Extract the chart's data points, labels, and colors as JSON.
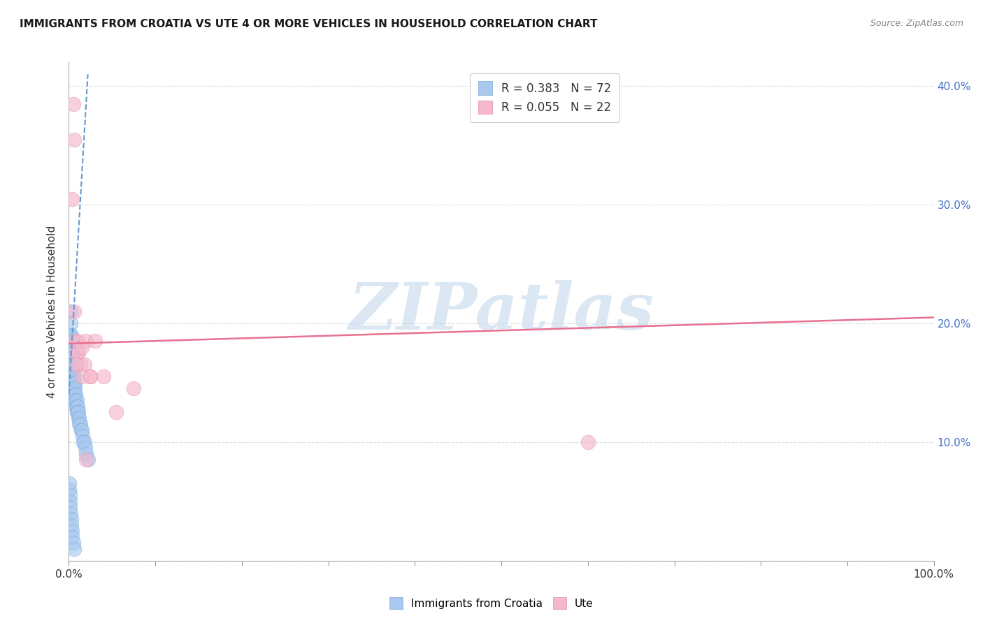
{
  "title": "IMMIGRANTS FROM CROATIA VS UTE 4 OR MORE VEHICLES IN HOUSEHOLD CORRELATION CHART",
  "source": "Source: ZipAtlas.com",
  "ylabel": "4 or more Vehicles in Household",
  "xlim": [
    0.0,
    1.0
  ],
  "ylim": [
    0.0,
    0.42
  ],
  "x_ticks": [
    0.0,
    0.1,
    0.2,
    0.3,
    0.4,
    0.5,
    0.6,
    0.7,
    0.8,
    0.9,
    1.0
  ],
  "x_tick_labels_bottom": [
    "0.0%",
    "",
    "",
    "",
    "",
    "",
    "",
    "",
    "",
    "",
    "100.0%"
  ],
  "y_ticks": [
    0.0,
    0.1,
    0.2,
    0.3,
    0.4
  ],
  "y_tick_labels_right": [
    "",
    "10.0%",
    "20.0%",
    "30.0%",
    "40.0%"
  ],
  "legend_entries": [
    {
      "label": "R = 0.383   N = 72",
      "color": "#A8C8F0"
    },
    {
      "label": "R = 0.055   N = 22",
      "color": "#F5B8CC"
    }
  ],
  "blue_scatter_x": [
    0.0008,
    0.001,
    0.0012,
    0.0015,
    0.0015,
    0.0018,
    0.002,
    0.002,
    0.002,
    0.0022,
    0.0025,
    0.003,
    0.003,
    0.003,
    0.003,
    0.003,
    0.0032,
    0.0035,
    0.004,
    0.004,
    0.004,
    0.004,
    0.0042,
    0.0045,
    0.005,
    0.005,
    0.005,
    0.005,
    0.005,
    0.005,
    0.006,
    0.006,
    0.006,
    0.006,
    0.006,
    0.007,
    0.007,
    0.007,
    0.007,
    0.008,
    0.008,
    0.008,
    0.009,
    0.009,
    0.009,
    0.01,
    0.01,
    0.011,
    0.011,
    0.012,
    0.012,
    0.013,
    0.014,
    0.015,
    0.016,
    0.017,
    0.018,
    0.019,
    0.02,
    0.022,
    0.0005,
    0.0008,
    0.001,
    0.0012,
    0.0015,
    0.002,
    0.0025,
    0.003,
    0.0035,
    0.004,
    0.005,
    0.006
  ],
  "blue_scatter_y": [
    0.19,
    0.185,
    0.17,
    0.165,
    0.16,
    0.175,
    0.21,
    0.2,
    0.19,
    0.185,
    0.175,
    0.19,
    0.185,
    0.18,
    0.175,
    0.17,
    0.18,
    0.17,
    0.175,
    0.17,
    0.165,
    0.16,
    0.175,
    0.165,
    0.165,
    0.16,
    0.155,
    0.15,
    0.145,
    0.14,
    0.155,
    0.15,
    0.145,
    0.14,
    0.135,
    0.15,
    0.145,
    0.14,
    0.135,
    0.14,
    0.135,
    0.13,
    0.135,
    0.13,
    0.125,
    0.13,
    0.125,
    0.125,
    0.12,
    0.12,
    0.115,
    0.115,
    0.11,
    0.11,
    0.105,
    0.1,
    0.1,
    0.095,
    0.09,
    0.085,
    0.065,
    0.06,
    0.055,
    0.05,
    0.045,
    0.04,
    0.035,
    0.03,
    0.025,
    0.02,
    0.015,
    0.01
  ],
  "pink_scatter_x": [
    0.005,
    0.006,
    0.007,
    0.009,
    0.01,
    0.011,
    0.013,
    0.015,
    0.018,
    0.02,
    0.025,
    0.03,
    0.04,
    0.055,
    0.075,
    0.6,
    0.004,
    0.006,
    0.008,
    0.015,
    0.02,
    0.025
  ],
  "pink_scatter_y": [
    0.385,
    0.355,
    0.185,
    0.175,
    0.185,
    0.175,
    0.165,
    0.18,
    0.165,
    0.185,
    0.155,
    0.185,
    0.155,
    0.125,
    0.145,
    0.1,
    0.305,
    0.21,
    0.165,
    0.155,
    0.085,
    0.155
  ],
  "blue_line_color": "#6699CC",
  "pink_line_color": "#E87090",
  "blue_line_x": [
    0.0,
    0.022
  ],
  "blue_line_y": [
    0.14,
    0.41
  ],
  "pink_line_x": [
    0.0,
    1.0
  ],
  "pink_line_y": [
    0.183,
    0.205
  ],
  "watermark_text": "ZIPatlas",
  "watermark_color": "#C5D8ED",
  "background_color": "#FFFFFF",
  "grid_color": "#DDDDDD",
  "bottom_legend": [
    {
      "label": "Immigrants from Croatia",
      "color": "#A8C8F0"
    },
    {
      "label": "Ute",
      "color": "#F5B8CC"
    }
  ]
}
